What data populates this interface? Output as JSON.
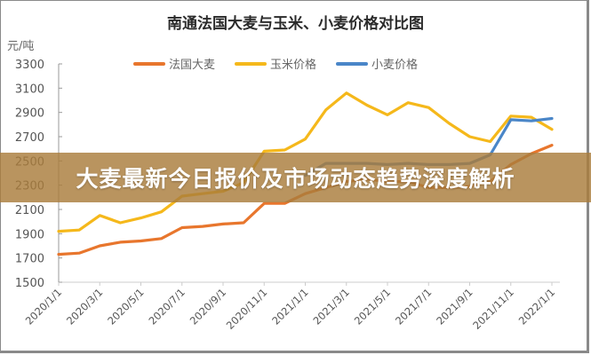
{
  "banner": {
    "text": "大麦最新今日报价及市场动态趋势深度解析"
  },
  "chart_data": {
    "type": "line",
    "title": "南通法国大麦与玉米、小麦价格对比图",
    "ylabel": "元/吨",
    "xlabel": "",
    "ylim": [
      1500,
      3300
    ],
    "yticks": [
      1500,
      1700,
      1900,
      2100,
      2300,
      2500,
      2700,
      2900,
      3100,
      3300
    ],
    "xticks": [
      "2020/1/1",
      "2020/3/1",
      "2020/5/1",
      "2020/7/1",
      "2020/9/1",
      "2020/11/1",
      "2021/1/1",
      "2021/3/1",
      "2021/5/1",
      "2021/7/1",
      "2021/9/1",
      "2021/11/1",
      "2022/1/1"
    ],
    "grid": false,
    "legend_position": "top",
    "x": [
      "2020/1/1",
      "2020/2/1",
      "2020/3/1",
      "2020/4/1",
      "2020/5/1",
      "2020/6/1",
      "2020/7/1",
      "2020/8/1",
      "2020/9/1",
      "2020/10/1",
      "2020/11/1",
      "2020/12/1",
      "2021/1/1",
      "2021/2/1",
      "2021/3/1",
      "2021/4/1",
      "2021/5/1",
      "2021/6/1",
      "2021/7/1",
      "2021/8/1",
      "2021/9/1",
      "2021/10/1",
      "2021/11/1",
      "2021/12/1",
      "2022/1/1"
    ],
    "series": [
      {
        "name": "法国大麦",
        "color": "#E8762D",
        "values": [
          1730,
          1740,
          1800,
          1830,
          1840,
          1860,
          1950,
          1960,
          1980,
          1990,
          2150,
          2150,
          2230,
          2280,
          2330,
          2350,
          2330,
          2330,
          2280,
          2280,
          2290,
          2330,
          2470,
          2560,
          2630
        ]
      },
      {
        "name": "玉米价格",
        "color": "#F5B81B",
        "values": [
          1920,
          1930,
          2050,
          1990,
          2030,
          2080,
          2210,
          2230,
          2250,
          2320,
          2580,
          2590,
          2680,
          2920,
          3060,
          2960,
          2880,
          2980,
          2940,
          2810,
          2700,
          2660,
          2870,
          2860,
          2760
        ]
      },
      {
        "name": "小麦价格",
        "color": "#4A86C8",
        "values": [
          null,
          null,
          null,
          null,
          null,
          null,
          null,
          null,
          null,
          null,
          null,
          null,
          2380,
          2480,
          2480,
          2480,
          2470,
          2480,
          2470,
          2470,
          2480,
          2550,
          2840,
          2830,
          2850
        ]
      }
    ]
  }
}
